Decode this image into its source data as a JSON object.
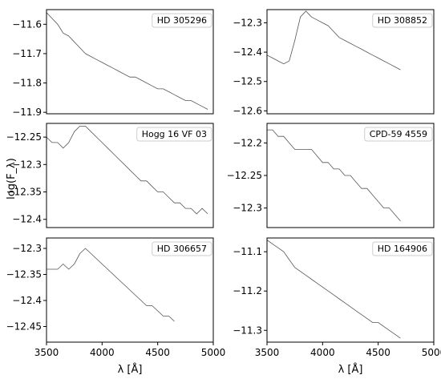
{
  "figure": {
    "ylabel": "log(F_λ)",
    "xlabel": "λ [Å]"
  },
  "chart_data": [
    {
      "type": "line",
      "panel": "top-left",
      "star": "HD 305296",
      "xlim": [
        3500,
        5000
      ],
      "ylim": [
        -11.905,
        -11.55
      ],
      "yticks": [
        -11.6,
        -11.7,
        -11.8,
        -11.9
      ],
      "xticks": [],
      "legend_position": "top-right",
      "x": [
        3500,
        3550,
        3600,
        3650,
        3700,
        3750,
        3800,
        3850,
        3900,
        3950,
        4000,
        4050,
        4100,
        4150,
        4200,
        4250,
        4300,
        4350,
        4400,
        4450,
        4500,
        4550,
        4600,
        4650,
        4700,
        4750,
        4800,
        4850,
        4900,
        4950
      ],
      "y": [
        -11.56,
        -11.58,
        -11.6,
        -11.63,
        -11.64,
        -11.66,
        -11.68,
        -11.7,
        -11.71,
        -11.72,
        -11.73,
        -11.74,
        -11.75,
        -11.76,
        -11.77,
        -11.78,
        -11.78,
        -11.79,
        -11.8,
        -11.81,
        -11.82,
        -11.82,
        -11.83,
        -11.84,
        -11.85,
        -11.86,
        -11.86,
        -11.87,
        -11.88,
        -11.89
      ]
    },
    {
      "type": "line",
      "panel": "top-right",
      "star": "HD 308852",
      "xlim": [
        3500,
        5000
      ],
      "ylim": [
        -12.61,
        -12.255
      ],
      "yticks": [
        -12.3,
        -12.4,
        -12.5,
        -12.6
      ],
      "xticks": [],
      "legend_position": "top-right",
      "x": [
        3500,
        3550,
        3600,
        3650,
        3700,
        3750,
        3800,
        3850,
        3900,
        3950,
        4000,
        4050,
        4100,
        4150,
        4200,
        4250,
        4300,
        4350,
        4400,
        4450,
        4500,
        4550,
        4600,
        4650,
        4700
      ],
      "y": [
        -12.41,
        -12.42,
        -12.43,
        -12.44,
        -12.43,
        -12.36,
        -12.28,
        -12.26,
        -12.28,
        -12.29,
        -12.3,
        -12.31,
        -12.33,
        -12.35,
        -12.36,
        -12.37,
        -12.38,
        -12.39,
        -12.4,
        -12.41,
        -12.42,
        -12.43,
        -12.44,
        -12.45,
        -12.46
      ]
    },
    {
      "type": "line",
      "panel": "middle-left",
      "star": "Hogg 16 VF 03",
      "xlim": [
        3500,
        5000
      ],
      "ylim": [
        -12.415,
        -12.225
      ],
      "yticks": [
        -12.25,
        -12.3,
        -12.35,
        -12.4
      ],
      "xticks": [],
      "legend_position": "top-right",
      "x": [
        3500,
        3550,
        3600,
        3650,
        3700,
        3750,
        3800,
        3850,
        3900,
        3950,
        4000,
        4050,
        4100,
        4150,
        4200,
        4250,
        4300,
        4350,
        4400,
        4450,
        4500,
        4550,
        4600,
        4650,
        4700,
        4750,
        4800,
        4850,
        4900,
        4950
      ],
      "y": [
        -12.25,
        -12.26,
        -12.26,
        -12.27,
        -12.26,
        -12.24,
        -12.23,
        -12.23,
        -12.24,
        -12.25,
        -12.26,
        -12.27,
        -12.28,
        -12.29,
        -12.3,
        -12.31,
        -12.32,
        -12.33,
        -12.33,
        -12.34,
        -12.35,
        -12.35,
        -12.36,
        -12.37,
        -12.37,
        -12.38,
        -12.38,
        -12.39,
        -12.38,
        -12.39
      ]
    },
    {
      "type": "line",
      "panel": "middle-right",
      "star": "CPD-59 4559",
      "xlim": [
        3500,
        5000
      ],
      "ylim": [
        -12.33,
        -12.17
      ],
      "yticks": [
        -12.2,
        -12.25,
        -12.3
      ],
      "xticks": [],
      "legend_position": "top-right",
      "x": [
        3500,
        3550,
        3600,
        3650,
        3700,
        3750,
        3800,
        3850,
        3900,
        3950,
        4000,
        4050,
        4100,
        4150,
        4200,
        4250,
        4300,
        4350,
        4400,
        4450,
        4500,
        4550,
        4600,
        4650,
        4700
      ],
      "y": [
        -12.18,
        -12.18,
        -12.19,
        -12.19,
        -12.2,
        -12.21,
        -12.21,
        -12.21,
        -12.21,
        -12.22,
        -12.23,
        -12.23,
        -12.24,
        -12.24,
        -12.25,
        -12.25,
        -12.26,
        -12.27,
        -12.27,
        -12.28,
        -12.29,
        -12.3,
        -12.3,
        -12.31,
        -12.32
      ]
    },
    {
      "type": "line",
      "panel": "bottom-left",
      "star": "HD 306657",
      "xlim": [
        3500,
        5000
      ],
      "ylim": [
        -12.48,
        -12.28
      ],
      "yticks": [
        -12.3,
        -12.35,
        -12.4,
        -12.45
      ],
      "xticks": [
        3500,
        4000,
        4500,
        5000
      ],
      "legend_position": "top-right",
      "x": [
        3500,
        3550,
        3600,
        3650,
        3700,
        3750,
        3800,
        3850,
        3900,
        3950,
        4000,
        4050,
        4100,
        4150,
        4200,
        4250,
        4300,
        4350,
        4400,
        4450,
        4500,
        4550,
        4600,
        4650
      ],
      "y": [
        -12.34,
        -12.34,
        -12.34,
        -12.33,
        -12.34,
        -12.33,
        -12.31,
        -12.3,
        -12.31,
        -12.32,
        -12.33,
        -12.34,
        -12.35,
        -12.36,
        -12.37,
        -12.38,
        -12.39,
        -12.4,
        -12.41,
        -12.41,
        -12.42,
        -12.43,
        -12.43,
        -12.44
      ]
    },
    {
      "type": "line",
      "panel": "bottom-right",
      "star": "HD 164906",
      "xlim": [
        3500,
        5000
      ],
      "ylim": [
        -11.33,
        -11.065
      ],
      "yticks": [
        -11.1,
        -11.2,
        -11.3
      ],
      "xticks": [
        3500,
        4000,
        4500,
        5000
      ],
      "legend_position": "top-right",
      "x": [
        3500,
        3550,
        3600,
        3650,
        3700,
        3750,
        3800,
        3850,
        3900,
        3950,
        4000,
        4050,
        4100,
        4150,
        4200,
        4250,
        4300,
        4350,
        4400,
        4450,
        4500,
        4550,
        4600,
        4650,
        4700
      ],
      "y": [
        -11.07,
        -11.08,
        -11.09,
        -11.1,
        -11.12,
        -11.14,
        -11.15,
        -11.16,
        -11.17,
        -11.18,
        -11.19,
        -11.2,
        -11.21,
        -11.22,
        -11.23,
        -11.24,
        -11.25,
        -11.26,
        -11.27,
        -11.28,
        -11.28,
        -11.29,
        -11.3,
        -11.31,
        -11.32
      ]
    }
  ]
}
